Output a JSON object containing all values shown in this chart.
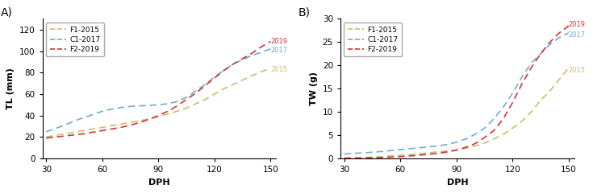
{
  "xvals": [
    30,
    35,
    40,
    45,
    50,
    55,
    60,
    65,
    70,
    75,
    80,
    85,
    90,
    95,
    100,
    105,
    110,
    115,
    120,
    125,
    130,
    135,
    140,
    145,
    150
  ],
  "tl_f1_2015": [
    20,
    21.5,
    23,
    24.5,
    26,
    27.5,
    29,
    30.5,
    32,
    33.5,
    35,
    37,
    39,
    41.5,
    44,
    47,
    51,
    55,
    60,
    65,
    69,
    73,
    77,
    81,
    84
  ],
  "tl_c1_2017": [
    25,
    28,
    31,
    35,
    38,
    41,
    44,
    46,
    47.5,
    48.5,
    49,
    49.5,
    50,
    51,
    53,
    57,
    63,
    69,
    76,
    82,
    88,
    92,
    96,
    99,
    102
  ],
  "tl_f2_2019": [
    19,
    20,
    21,
    22,
    23,
    24.5,
    26,
    27.5,
    29,
    31,
    33.5,
    36.5,
    40,
    44,
    49,
    55,
    61,
    68,
    75,
    82,
    88,
    93,
    98,
    104,
    109
  ],
  "tw_f1_2015": [
    0.1,
    0.15,
    0.2,
    0.3,
    0.4,
    0.55,
    0.7,
    0.85,
    1.0,
    1.2,
    1.45,
    1.6,
    1.8,
    2.2,
    2.7,
    3.3,
    4.2,
    5.2,
    6.5,
    8.0,
    10.0,
    12.5,
    14.5,
    17.0,
    19.5
  ],
  "tw_c1_2017": [
    1.0,
    1.1,
    1.2,
    1.35,
    1.5,
    1.7,
    1.9,
    2.1,
    2.3,
    2.5,
    2.7,
    3.0,
    3.5,
    4.2,
    5.2,
    6.5,
    8.5,
    11.0,
    14.0,
    17.5,
    20.5,
    22.5,
    24.5,
    26.0,
    27.0
  ],
  "tw_f2_2019": [
    0.05,
    0.07,
    0.1,
    0.15,
    0.2,
    0.3,
    0.4,
    0.55,
    0.7,
    0.9,
    1.1,
    1.4,
    1.8,
    2.4,
    3.2,
    4.5,
    6.0,
    8.5,
    12.0,
    16.0,
    19.5,
    22.5,
    25.0,
    27.0,
    28.5
  ],
  "color_2015": "#c8be6e",
  "color_2017": "#6baed6",
  "color_2019": "#d63333",
  "label_2015": "F1-2015",
  "label_2017": "C1-2017",
  "label_2019": "F2-2019",
  "xlabel": "DPH",
  "ylabel_a": "TL (mm)",
  "ylabel_b": "TW (g)",
  "panel_a": "A)",
  "panel_b": "B)",
  "xlim": [
    28,
    153
  ],
  "ylim_a": [
    0,
    130
  ],
  "ylim_b": [
    0,
    30
  ],
  "xticks": [
    30,
    60,
    90,
    120,
    150
  ],
  "yticks_a": [
    0,
    20,
    40,
    60,
    80,
    100,
    120
  ],
  "yticks_b": [
    0,
    5,
    10,
    15,
    20,
    25,
    30
  ]
}
